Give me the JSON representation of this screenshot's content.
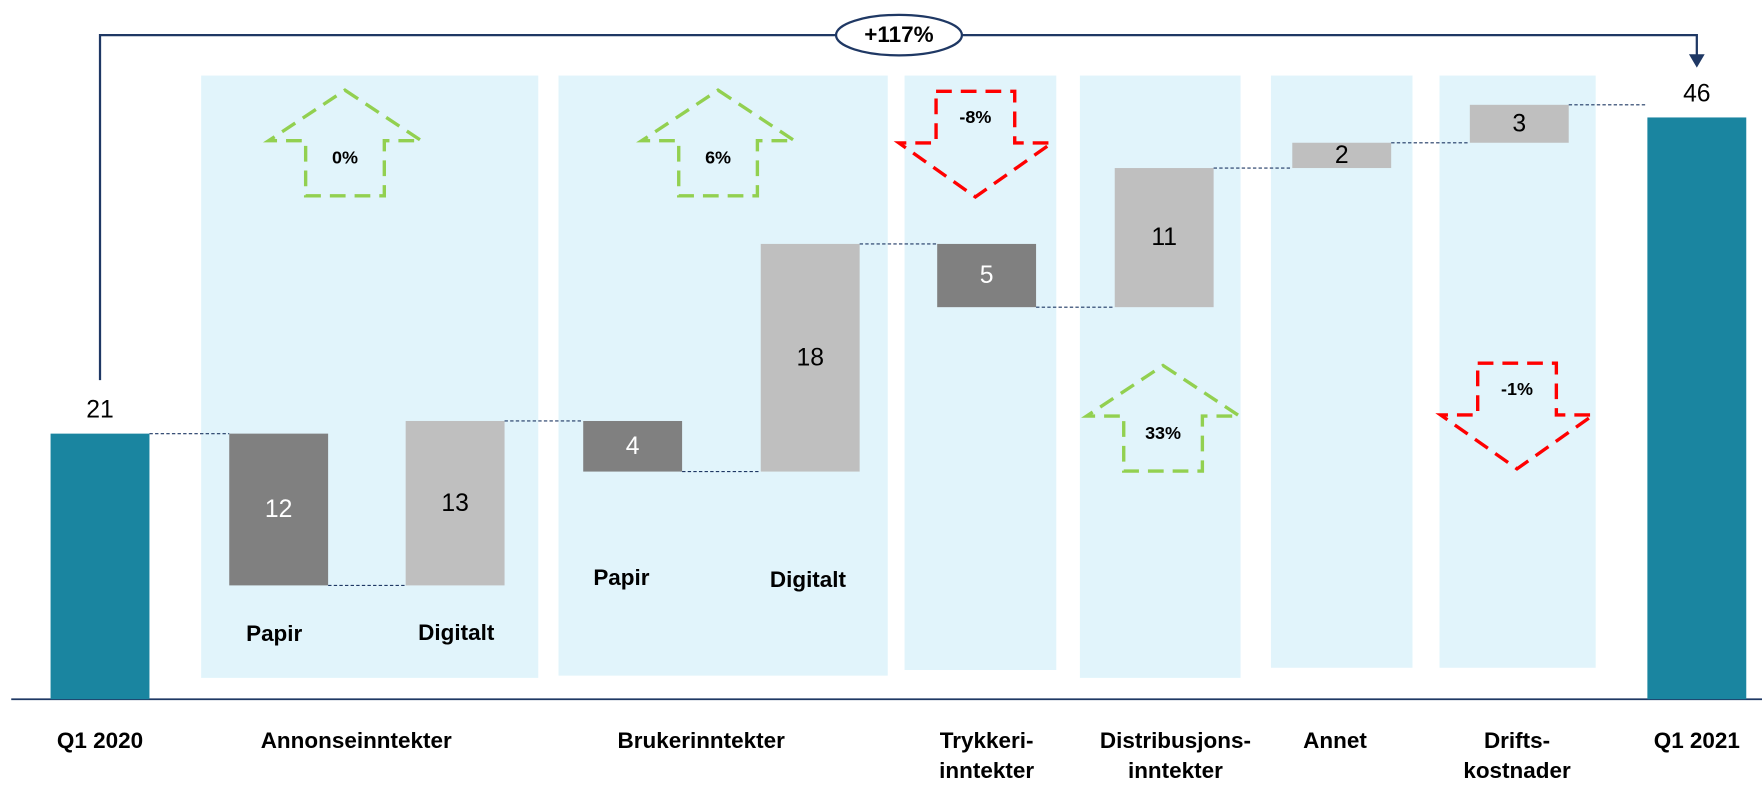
{
  "chart_data": {
    "type": "waterfall",
    "annotation": "+117%",
    "groups": [
      [
        "Q1 2020"
      ],
      [
        "Annonseinntekter"
      ],
      [
        "Brukerinntekter"
      ],
      [
        "Trykkeri-",
        "inntekter"
      ],
      [
        "Distribusjons-",
        "inntekter"
      ],
      [
        "Annet"
      ],
      [
        "Drifts-",
        "kostnader"
      ],
      [
        "Q1 2021"
      ]
    ],
    "sublabels": [
      "Papir",
      "Digitalt",
      "Papir",
      "Digitalt"
    ],
    "values": [
      21,
      12,
      13,
      4,
      18,
      5,
      11,
      2,
      3,
      46
    ],
    "direction": [
      "total",
      "down",
      "up",
      "down",
      "up",
      "down",
      "up",
      "up",
      "up",
      "total"
    ],
    "colors": {
      "total": "#1a85a0",
      "down": "#808080",
      "up": "#bfbfbf"
    },
    "changes": {
      "values": [
        0,
        6,
        -8,
        33,
        -1
      ],
      "value_labels": [
        "0%",
        "6%",
        "-8%",
        "33%",
        "-1%"
      ],
      "colors": {
        "up": "#92d050",
        "down": "#ff0000"
      }
    },
    "ylim": [
      0,
      55
    ]
  }
}
